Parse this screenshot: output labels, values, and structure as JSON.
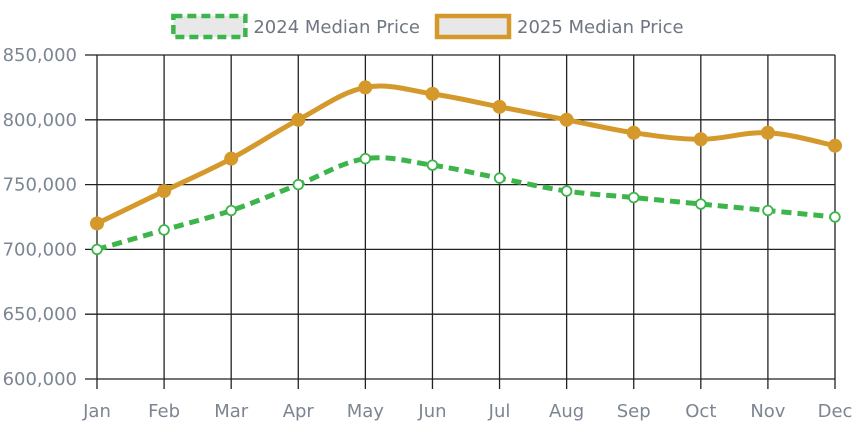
{
  "chart_data": {
    "type": "line",
    "title": "",
    "xlabel": "",
    "ylabel": "",
    "categories": [
      "Jan",
      "Feb",
      "Mar",
      "Apr",
      "May",
      "Jun",
      "Jul",
      "Aug",
      "Sep",
      "Oct",
      "Nov",
      "Dec"
    ],
    "ylim": [
      600000,
      850000
    ],
    "yticks": [
      600000,
      650000,
      700000,
      750000,
      800000,
      850000
    ],
    "ytick_labels": [
      "600,000",
      "650,000",
      "700,000",
      "750,000",
      "800,000",
      "850,000"
    ],
    "grid": true,
    "legend_position": "top-center",
    "series": [
      {
        "name": "2024 Median Price",
        "values": [
          700000,
          715000,
          730000,
          750000,
          770000,
          765000,
          755000,
          745000,
          740000,
          735000,
          730000,
          725000
        ],
        "color": "#3cb54a",
        "style": "dashed",
        "marker": "hollow-circle"
      },
      {
        "name": "2025 Median Price",
        "values": [
          720000,
          745000,
          770000,
          800000,
          825000,
          820000,
          810000,
          800000,
          790000,
          785000,
          790000,
          780000
        ],
        "color": "#d4992a",
        "style": "solid",
        "marker": "filled-circle"
      }
    ]
  },
  "legend_swatch_fill": "#e8e8e8"
}
